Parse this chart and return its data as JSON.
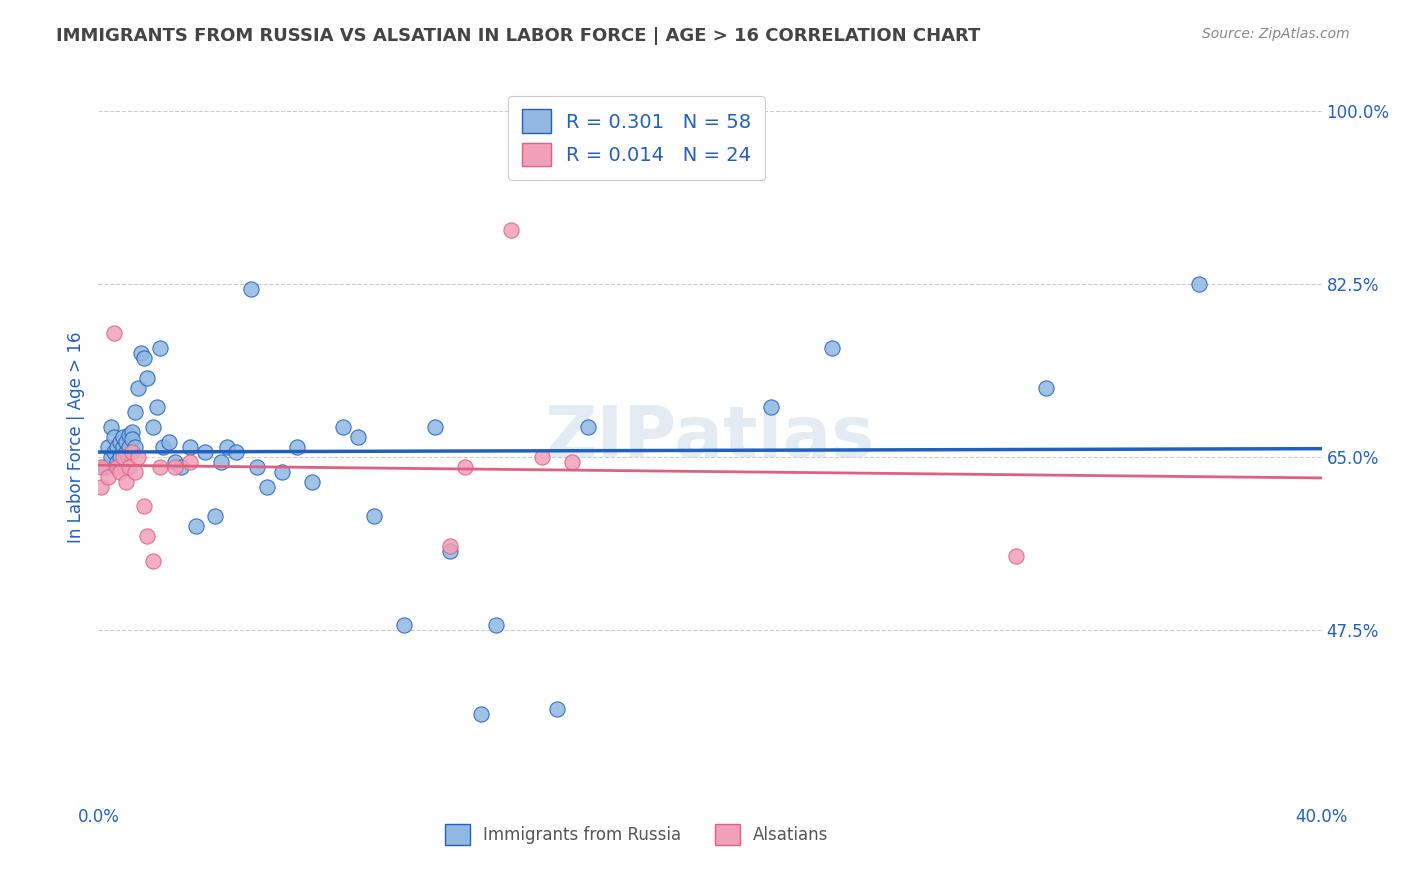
{
  "title": "IMMIGRANTS FROM RUSSIA VS ALSATIAN IN LABOR FORCE | AGE > 16 CORRELATION CHART",
  "source": "Source: ZipAtlas.com",
  "xlabel": "",
  "ylabel": "In Labor Force | Age > 16",
  "xlim": [
    0.0,
    0.4
  ],
  "ylim": [
    0.3,
    1.04
  ],
  "xticks": [
    0.0,
    0.05,
    0.1,
    0.15,
    0.2,
    0.25,
    0.3,
    0.35,
    0.4
  ],
  "xticklabels": [
    "0.0%",
    "",
    "",
    "",
    "",
    "",
    "",
    "",
    "40.0%"
  ],
  "ytick_positions": [
    0.475,
    0.65,
    0.825,
    1.0
  ],
  "ytick_labels": [
    "47.5%",
    "65.0%",
    "82.5%",
    "100.0%"
  ],
  "blue_R": 0.301,
  "blue_N": 58,
  "pink_R": 0.014,
  "pink_N": 24,
  "legend_label_blue": "Immigrants from Russia",
  "legend_label_pink": "Alsatians",
  "blue_color": "#90b8e0",
  "pink_color": "#f0a0b8",
  "blue_line_color": "#2060c0",
  "pink_line_color": "#e06080",
  "title_color": "#333333",
  "axis_label_color": "#2060c0",
  "tick_label_color": "#2060c0",
  "legend_text_color": "#2060c0",
  "watermark": "ZIPatlas",
  "blue_x": [
    0.002,
    0.003,
    0.004,
    0.004,
    0.005,
    0.005,
    0.006,
    0.006,
    0.007,
    0.007,
    0.008,
    0.008,
    0.009,
    0.009,
    0.01,
    0.01,
    0.011,
    0.011,
    0.012,
    0.012,
    0.013,
    0.014,
    0.015,
    0.016,
    0.018,
    0.019,
    0.02,
    0.021,
    0.023,
    0.025,
    0.027,
    0.03,
    0.032,
    0.035,
    0.038,
    0.04,
    0.042,
    0.045,
    0.05,
    0.052,
    0.055,
    0.06,
    0.065,
    0.07,
    0.08,
    0.085,
    0.09,
    0.1,
    0.11,
    0.115,
    0.125,
    0.13,
    0.15,
    0.16,
    0.22,
    0.24,
    0.31,
    0.36
  ],
  "blue_y": [
    0.64,
    0.66,
    0.65,
    0.68,
    0.655,
    0.67,
    0.645,
    0.66,
    0.65,
    0.665,
    0.66,
    0.67,
    0.655,
    0.665,
    0.672,
    0.66,
    0.675,
    0.668,
    0.695,
    0.66,
    0.72,
    0.755,
    0.75,
    0.73,
    0.68,
    0.7,
    0.76,
    0.66,
    0.665,
    0.645,
    0.64,
    0.66,
    0.58,
    0.655,
    0.59,
    0.645,
    0.66,
    0.655,
    0.82,
    0.64,
    0.62,
    0.635,
    0.66,
    0.625,
    0.68,
    0.67,
    0.59,
    0.48,
    0.68,
    0.555,
    0.39,
    0.48,
    0.395,
    0.68,
    0.7,
    0.76,
    0.72,
    0.825
  ],
  "pink_x": [
    0.001,
    0.001,
    0.003,
    0.005,
    0.006,
    0.007,
    0.008,
    0.009,
    0.01,
    0.011,
    0.012,
    0.013,
    0.015,
    0.016,
    0.018,
    0.02,
    0.025,
    0.03,
    0.115,
    0.12,
    0.135,
    0.145,
    0.155,
    0.3
  ],
  "pink_y": [
    0.64,
    0.62,
    0.63,
    0.775,
    0.64,
    0.635,
    0.65,
    0.625,
    0.64,
    0.655,
    0.635,
    0.65,
    0.6,
    0.57,
    0.545,
    0.64,
    0.64,
    0.645,
    0.56,
    0.64,
    0.88,
    0.65,
    0.645,
    0.55
  ]
}
